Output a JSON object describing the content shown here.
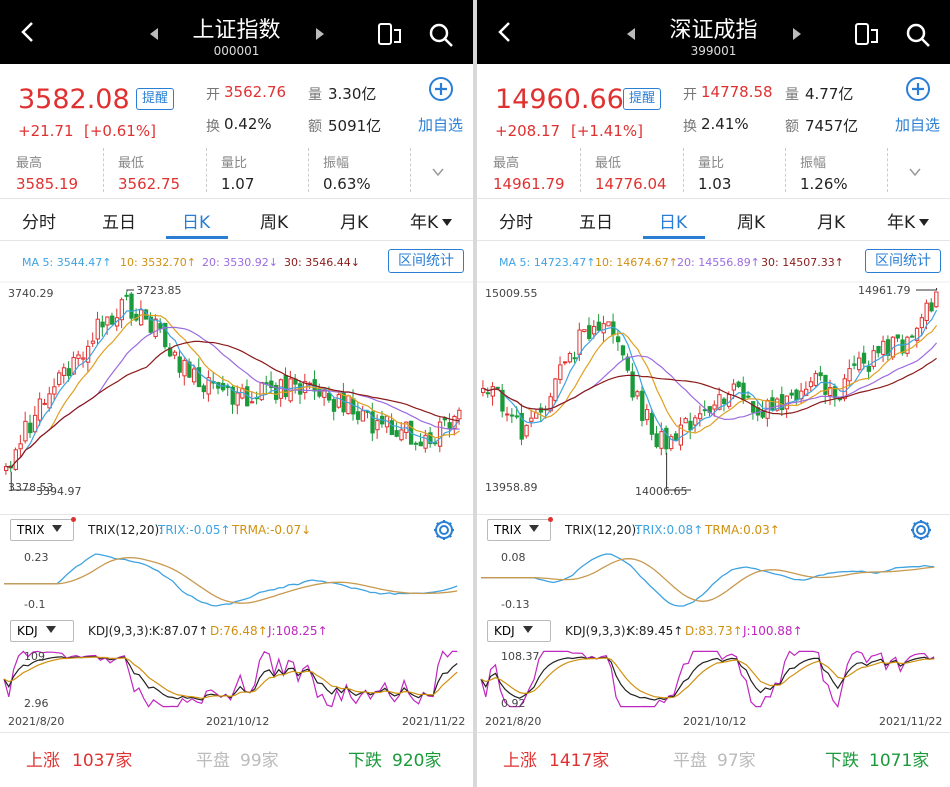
{
  "panels": [
    {
      "title": "上证指数",
      "code": "000001",
      "price": "3582.08",
      "change": "+21.71",
      "change_pct": "[+0.61%]",
      "alert_label": "提醒",
      "open_label": "开",
      "open": "3562.76",
      "vol_label": "量",
      "vol": "3.30亿",
      "turnover_label": "换",
      "turnover": "0.42%",
      "amount_label": "额",
      "amount": "5091亿",
      "add_label": "加自选",
      "high_label": "最高",
      "high": "3585.19",
      "low_label": "最低",
      "low": "3562.75",
      "ratio_label": "量比",
      "ratio": "1.07",
      "amp_label": "振幅",
      "amp": "0.63%",
      "tabs": [
        "分时",
        "五日",
        "日K",
        "周K",
        "月K",
        "年K"
      ],
      "active_tab": 2,
      "ma": [
        "MA 5: 3544.47↑",
        "10: 3532.70↑",
        "20: 3530.92↓",
        "30: 3546.44↓"
      ],
      "range_btn": "区间统计",
      "y_top": "3740.29",
      "y_bottom": "3378.53",
      "max_label": "3723.85",
      "min_label": "3394.97",
      "trix_btn": "TRIX",
      "trix_params": "TRIX(12,20):",
      "trix_val": "TRIX:-0.05↑",
      "trma_val": "TRMA:-0.07↓",
      "trix_top": "0.23",
      "trix_bottom": "-0.1",
      "kdj_btn": "KDJ",
      "kdj_params": "KDJ(9,3,3):",
      "k_val": "K:87.07↑",
      "d_val": "D:76.48↑",
      "j_val": "J:108.25↑",
      "kdj_top": "109",
      "kdj_bottom": "2.96",
      "dates": [
        "2021/8/20",
        "2021/10/12",
        "2021/11/22"
      ],
      "up_label": "上涨",
      "up": "1037家",
      "flat_label": "平盘",
      "flat": "99家",
      "down_label": "下跌",
      "down": "920家",
      "chart_data": {
        "type": "candlestick",
        "ylim": [
          3378.53,
          3740.29
        ],
        "high": 3723.85,
        "low": 3394.97,
        "last_close": 3582.08
      }
    },
    {
      "title": "深证成指",
      "code": "399001",
      "price": "14960.66",
      "change": "+208.17",
      "change_pct": "[+1.41%]",
      "alert_label": "提醒",
      "open_label": "开",
      "open": "14778.58",
      "vol_label": "量",
      "vol": "4.77亿",
      "turnover_label": "换",
      "turnover": "2.41%",
      "amount_label": "额",
      "amount": "7457亿",
      "add_label": "加自选",
      "high_label": "最高",
      "high": "14961.79",
      "low_label": "最低",
      "low": "14776.04",
      "ratio_label": "量比",
      "ratio": "1.03",
      "amp_label": "振幅",
      "amp": "1.26%",
      "tabs": [
        "分时",
        "五日",
        "日K",
        "周K",
        "月K",
        "年K"
      ],
      "active_tab": 2,
      "ma": [
        "MA 5: 14723.47↑",
        "10: 14674.67↑",
        "20: 14556.89↑",
        "30: 14507.33↑"
      ],
      "range_btn": "区间统计",
      "y_top": "15009.55",
      "y_bottom": "13958.89",
      "max_label": "14961.79",
      "min_label": "14006.65",
      "trix_btn": "TRIX",
      "trix_params": "TRIX(12,20):",
      "trix_val": "TRIX:0.08↑",
      "trma_val": "TRMA:0.03↑",
      "trix_top": "0.08",
      "trix_bottom": "-0.13",
      "kdj_btn": "KDJ",
      "kdj_params": "KDJ(9,3,3):",
      "k_val": "K:89.45↑",
      "d_val": "D:83.73↑",
      "j_val": "J:100.88↑",
      "kdj_top": "108.37",
      "kdj_bottom": "0.92",
      "dates": [
        "2021/8/20",
        "2021/10/12",
        "2021/11/22"
      ],
      "up_label": "上涨",
      "up": "1417家",
      "flat_label": "平盘",
      "flat": "97家",
      "down_label": "下跌",
      "down": "1071家",
      "chart_data": {
        "type": "candlestick",
        "ylim": [
          13958.89,
          15009.55
        ],
        "high": 14961.79,
        "low": 14006.65,
        "last_close": 14960.66
      }
    }
  ],
  "colors": {
    "up": "#e03131",
    "down": "#1a9a3a",
    "accent": "#2a7fd4",
    "ma5": "#3fa3e0",
    "ma10": "#e0a020",
    "ma20": "#9b6be0",
    "ma30": "#8b1a1a"
  }
}
